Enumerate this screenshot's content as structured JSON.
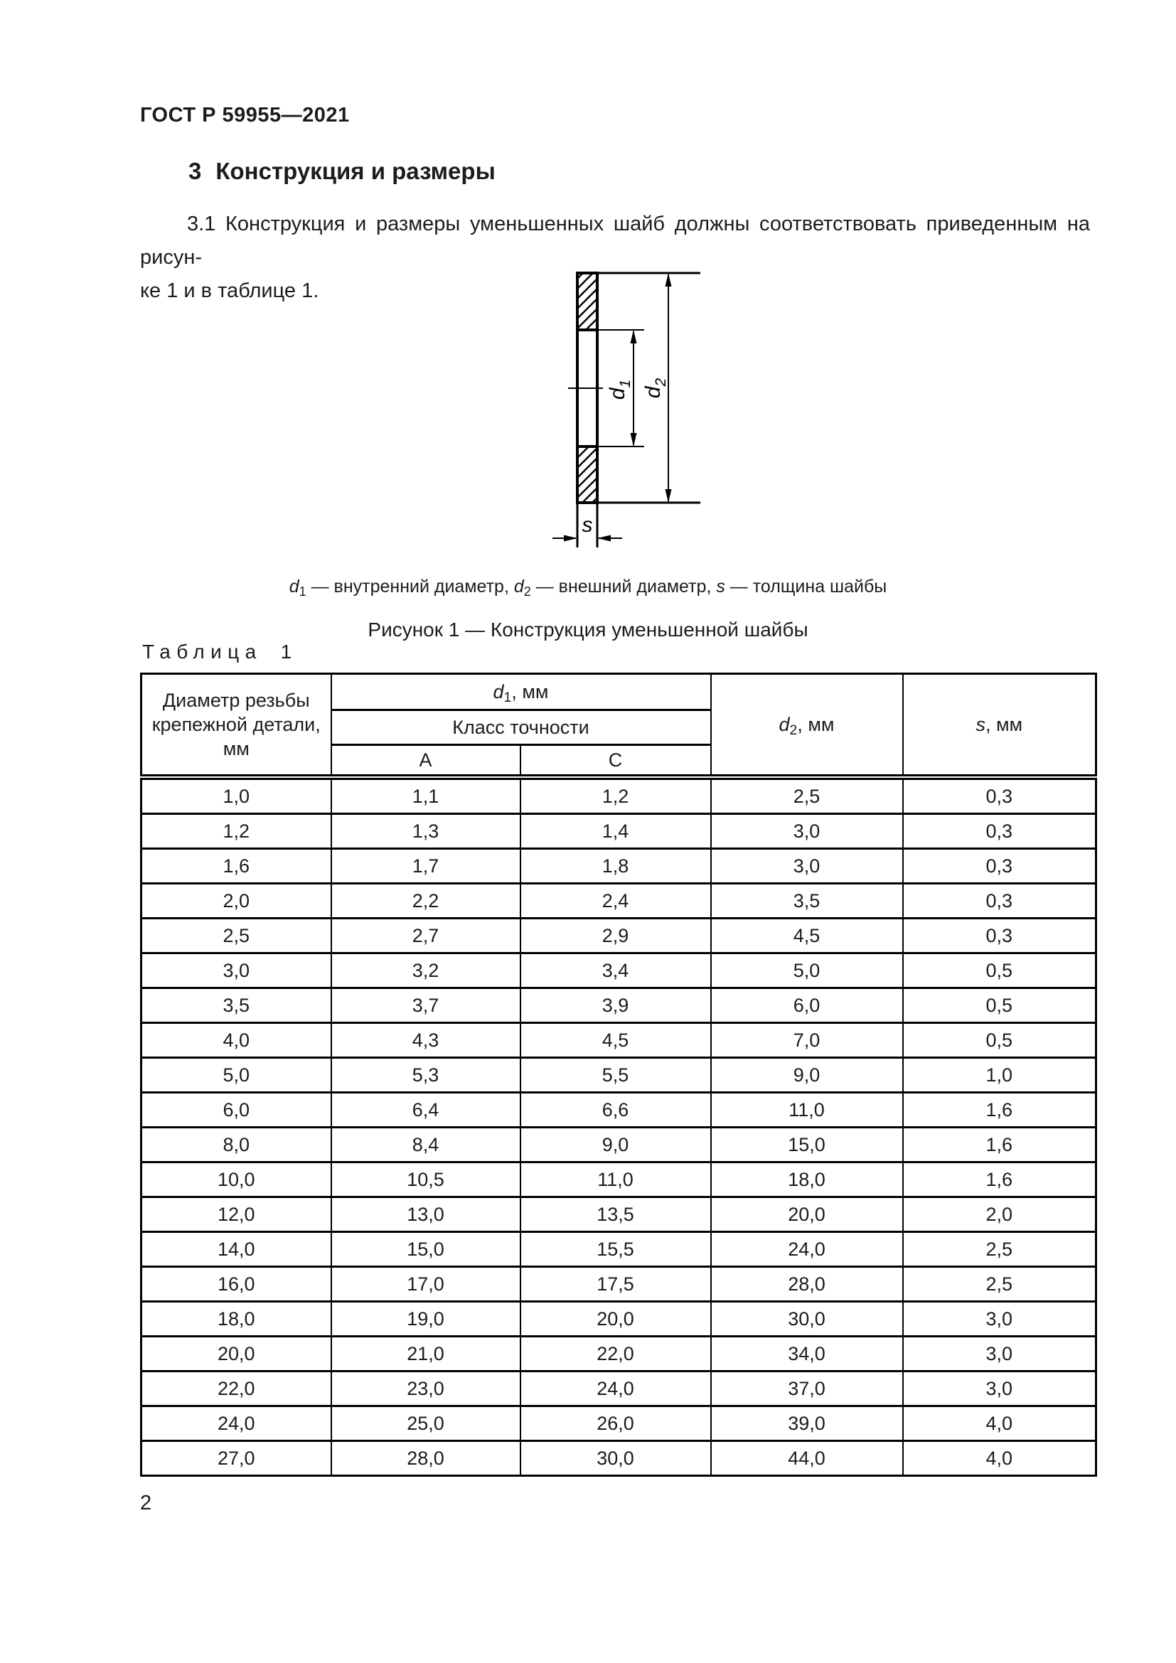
{
  "page": {
    "number": "2"
  },
  "header": {
    "doc_code": "ГОСТ Р 59955—2021"
  },
  "section": {
    "number": "3",
    "title": "Конструкция и размеры"
  },
  "paragraph": {
    "line1": "3.1 Конструкция и размеры уменьшенных шайб должны соответствовать приведенным на рисун-",
    "line2": "ке 1 и в таблице 1."
  },
  "figure": {
    "drawing": {
      "d_sym": "d",
      "d1_sub": "1",
      "d2_sub": "2",
      "s_sym": "s"
    },
    "caption": {
      "d_sym": "d",
      "d1_sub": "1",
      "d1_text": " — внутренний диаметр, ",
      "d2_sub": "2",
      "d2_text": " — внешний диаметр, ",
      "s_sym": "s",
      "s_text": " — толщина шайбы"
    },
    "title": "Рисунок 1 — Конструкция уменьшенной шайбы"
  },
  "table": {
    "label_word": "Таблица",
    "label_number": "1",
    "head": {
      "col1_line1": "Диаметр резьбы",
      "col1_line2": "крепежной детали, мм",
      "d_sym": "d",
      "d1_sub": "1",
      "d2_sub": "2",
      "s_sym": "s",
      "mm_suffix": ", мм",
      "accuracy_class": "Класс точности",
      "class_a": "А",
      "class_c": "С"
    },
    "rows": [
      [
        "1,0",
        "1,1",
        "1,2",
        "2,5",
        "0,3"
      ],
      [
        "1,2",
        "1,3",
        "1,4",
        "3,0",
        "0,3"
      ],
      [
        "1,6",
        "1,7",
        "1,8",
        "3,0",
        "0,3"
      ],
      [
        "2,0",
        "2,2",
        "2,4",
        "3,5",
        "0,3"
      ],
      [
        "2,5",
        "2,7",
        "2,9",
        "4,5",
        "0,3"
      ],
      [
        "3,0",
        "3,2",
        "3,4",
        "5,0",
        "0,5"
      ],
      [
        "3,5",
        "3,7",
        "3,9",
        "6,0",
        "0,5"
      ],
      [
        "4,0",
        "4,3",
        "4,5",
        "7,0",
        "0,5"
      ],
      [
        "5,0",
        "5,3",
        "5,5",
        "9,0",
        "1,0"
      ],
      [
        "6,0",
        "6,4",
        "6,6",
        "11,0",
        "1,6"
      ],
      [
        "8,0",
        "8,4",
        "9,0",
        "15,0",
        "1,6"
      ],
      [
        "10,0",
        "10,5",
        "11,0",
        "18,0",
        "1,6"
      ],
      [
        "12,0",
        "13,0",
        "13,5",
        "20,0",
        "2,0"
      ],
      [
        "14,0",
        "15,0",
        "15,5",
        "24,0",
        "2,5"
      ],
      [
        "16,0",
        "17,0",
        "17,5",
        "28,0",
        "2,5"
      ],
      [
        "18,0",
        "19,0",
        "20,0",
        "30,0",
        "3,0"
      ],
      [
        "20,0",
        "21,0",
        "22,0",
        "34,0",
        "3,0"
      ],
      [
        "22,0",
        "23,0",
        "24,0",
        "37,0",
        "3,0"
      ],
      [
        "24,0",
        "25,0",
        "26,0",
        "39,0",
        "4,0"
      ],
      [
        "27,0",
        "28,0",
        "30,0",
        "44,0",
        "4,0"
      ]
    ]
  }
}
